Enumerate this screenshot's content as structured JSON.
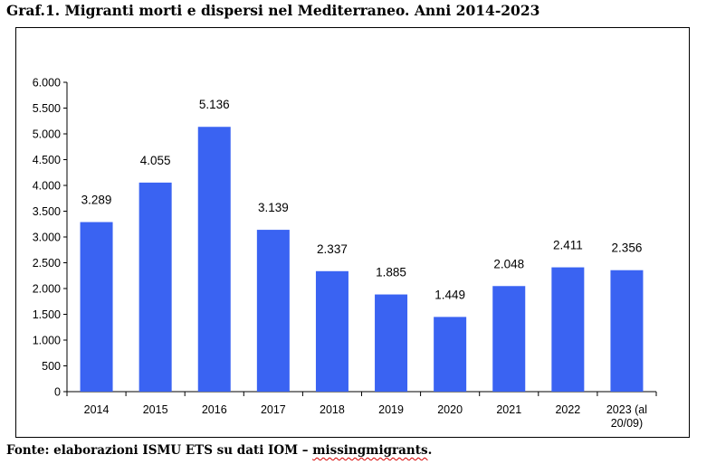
{
  "title": "Graf.1. Migranti morti e dispersi nel Mediterraneo. Anni 2014-2023",
  "source": {
    "prefix": "Fonte: elaborazioni ISMU ETS su dati IOM – ",
    "site": "missingmigrants",
    "suffix": "."
  },
  "chart_data": {
    "type": "bar",
    "categories": [
      [
        "2014"
      ],
      [
        "2015"
      ],
      [
        "2016"
      ],
      [
        "2017"
      ],
      [
        "2018"
      ],
      [
        "2019"
      ],
      [
        "2020"
      ],
      [
        "2021"
      ],
      [
        "2022"
      ],
      [
        "2023 (al",
        "20/09)"
      ]
    ],
    "values": [
      3289,
      4055,
      5136,
      3139,
      2337,
      1885,
      1449,
      2048,
      2411,
      2356
    ],
    "data_labels": [
      "3.289",
      "4.055",
      "5.136",
      "3.139",
      "2.337",
      "1.885",
      "1.449",
      "2.048",
      "2.411",
      "2.356"
    ],
    "y_ticks": [
      0,
      500,
      1000,
      1500,
      2000,
      2500,
      3000,
      3500,
      4000,
      4500,
      5000,
      5500,
      6000
    ],
    "y_tick_labels": [
      "0",
      "500",
      "1.000",
      "1.500",
      "2.000",
      "2.500",
      "3.000",
      "3.500",
      "4.000",
      "4.500",
      "5.000",
      "5.500",
      "6.000"
    ],
    "ylim": [
      0,
      6000
    ],
    "grid": false,
    "legend": "none",
    "bar_color": "#3a63f2"
  }
}
